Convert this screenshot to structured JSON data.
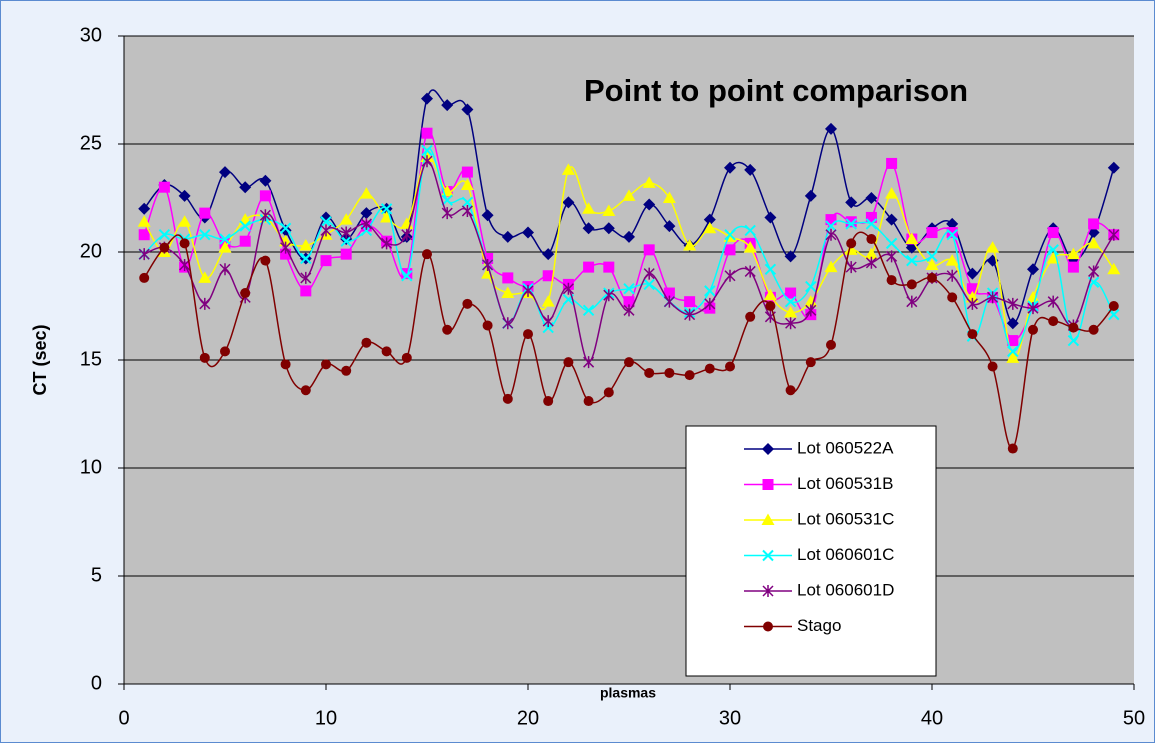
{
  "chart_data": {
    "type": "line",
    "title": "Point to point comparison",
    "x_label": "plasmas",
    "y_label": "CT (sec)",
    "x": [
      1,
      2,
      3,
      4,
      5,
      6,
      7,
      8,
      9,
      10,
      11,
      12,
      13,
      14,
      15,
      16,
      17,
      18,
      19,
      20,
      21,
      22,
      23,
      24,
      25,
      26,
      27,
      28,
      29,
      30,
      31,
      32,
      33,
      34,
      35,
      36,
      37,
      38,
      39,
      40,
      41,
      42,
      43,
      44,
      45,
      46,
      47,
      48,
      49
    ],
    "xlim": [
      0,
      50
    ],
    "xticks": [
      0,
      10,
      20,
      30,
      40,
      50
    ],
    "ylim": [
      0,
      30
    ],
    "yticks": [
      0,
      5,
      10,
      15,
      20,
      25,
      30
    ],
    "grid": true,
    "smooth": true,
    "legend": "lower right",
    "series": [
      {
        "name": "Lot 060522A",
        "color": "#000080",
        "marker": "diamond",
        "values": [
          22.0,
          23.1,
          22.6,
          21.6,
          23.7,
          23.0,
          23.3,
          21.0,
          19.7,
          21.6,
          20.6,
          21.8,
          22.0,
          20.7,
          27.1,
          26.8,
          26.6,
          21.7,
          20.7,
          20.9,
          19.9,
          22.3,
          21.1,
          21.1,
          20.7,
          22.2,
          21.2,
          20.3,
          21.5,
          23.9,
          23.8,
          21.6,
          19.8,
          22.6,
          25.7,
          22.3,
          22.5,
          21.5,
          20.2,
          21.1,
          21.3,
          19.0,
          19.6,
          16.7,
          19.2,
          21.1,
          19.6,
          20.9,
          23.9
        ]
      },
      {
        "name": "Lot 060531B",
        "color": "#ff00ff",
        "marker": "square",
        "values": [
          20.8,
          23.0,
          19.3,
          21.8,
          20.4,
          20.5,
          22.6,
          19.9,
          18.2,
          19.6,
          19.9,
          21.2,
          20.5,
          19.0,
          25.5,
          22.8,
          23.7,
          19.7,
          18.8,
          18.4,
          18.9,
          18.5,
          19.3,
          19.3,
          17.7,
          20.1,
          18.1,
          17.7,
          17.4,
          20.1,
          20.4,
          17.9,
          18.1,
          17.1,
          21.5,
          21.4,
          21.6,
          24.1,
          20.6,
          20.9,
          20.9,
          18.3,
          17.9,
          15.9,
          17.5,
          20.9,
          19.3,
          21.3,
          20.8
        ]
      },
      {
        "name": "Lot 060531C",
        "color": "#ffff00",
        "marker": "triangle",
        "values": [
          21.4,
          20.0,
          21.4,
          18.8,
          20.2,
          21.5,
          21.6,
          20.5,
          20.3,
          20.8,
          21.5,
          22.7,
          21.6,
          21.3,
          24.4,
          22.8,
          23.1,
          19.0,
          18.1,
          18.1,
          17.7,
          23.8,
          22.0,
          21.9,
          22.6,
          23.2,
          22.5,
          20.3,
          21.1,
          20.7,
          20.2,
          18.0,
          17.2,
          17.7,
          19.3,
          20.1,
          19.9,
          22.7,
          20.6,
          19.4,
          19.6,
          17.9,
          20.2,
          15.1,
          17.9,
          19.7,
          19.9,
          20.4,
          19.2
        ]
      },
      {
        "name": "Lot 060601C",
        "color": "#00ffff",
        "marker": "x",
        "values": [
          19.9,
          20.8,
          20.6,
          20.8,
          20.6,
          21.2,
          21.5,
          21.1,
          19.7,
          21.4,
          20.5,
          21.0,
          22.0,
          18.9,
          24.7,
          22.4,
          22.3,
          19.4,
          16.7,
          18.3,
          16.5,
          17.8,
          17.3,
          18.1,
          18.3,
          18.5,
          17.7,
          17.2,
          18.2,
          20.8,
          21.0,
          19.2,
          17.7,
          18.4,
          21.2,
          21.3,
          21.3,
          20.4,
          19.6,
          19.8,
          20.8,
          16.1,
          18.1,
          15.4,
          17.5,
          20.1,
          15.9,
          18.6,
          17.1
        ]
      },
      {
        "name": "Lot 060601D",
        "color": "#800080",
        "marker": "asterisk",
        "values": [
          19.9,
          20.2,
          19.4,
          17.6,
          19.2,
          17.9,
          21.7,
          20.2,
          18.8,
          21.0,
          20.9,
          21.3,
          20.4,
          20.8,
          24.2,
          21.8,
          21.9,
          19.4,
          16.7,
          18.2,
          16.8,
          18.3,
          14.9,
          18.0,
          17.3,
          19.0,
          17.7,
          17.1,
          17.6,
          18.9,
          19.1,
          17.0,
          16.7,
          17.3,
          20.8,
          19.3,
          19.5,
          19.8,
          17.7,
          18.8,
          18.9,
          17.6,
          17.9,
          17.6,
          17.4,
          17.7,
          16.6,
          19.1,
          20.8
        ]
      },
      {
        "name": "Stago",
        "color": "#800000",
        "marker": "circle",
        "values": [
          18.8,
          20.2,
          20.4,
          15.1,
          15.4,
          18.1,
          19.6,
          14.8,
          13.6,
          14.8,
          14.5,
          15.8,
          15.4,
          15.1,
          19.9,
          16.4,
          17.6,
          16.6,
          13.2,
          16.2,
          13.1,
          14.9,
          13.1,
          13.5,
          14.9,
          14.4,
          14.4,
          14.3,
          14.6,
          14.7,
          17.0,
          17.5,
          13.6,
          14.9,
          15.7,
          20.4,
          20.6,
          18.7,
          18.5,
          18.8,
          17.9,
          16.2,
          14.7,
          10.9,
          16.4,
          16.8,
          16.5,
          16.4,
          17.5
        ]
      }
    ]
  }
}
